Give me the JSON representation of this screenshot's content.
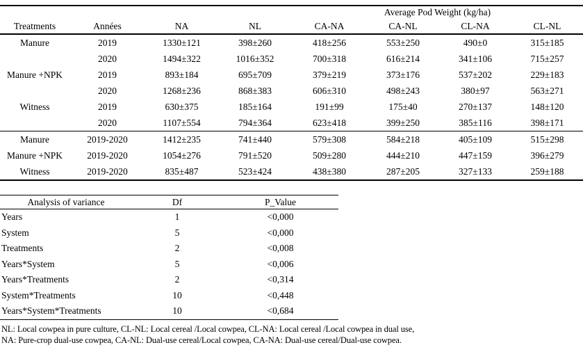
{
  "colors": {
    "text": "#000000",
    "background": "#ffffff",
    "rule": "#000000"
  },
  "main_table": {
    "spanning_header": "Average Pod Weight (kg/ha)",
    "columns": [
      "Treatments",
      "Années",
      "NA",
      "NL",
      "CA-NA",
      "CA-NL",
      "CL-NA",
      "CL-NL"
    ],
    "yearly_rows": [
      {
        "treatment": "Manure",
        "year": "2019",
        "values": [
          "1330±121",
          "398±260",
          "418±256",
          "553±250",
          "490±0",
          "315±185"
        ]
      },
      {
        "treatment": "",
        "year": "2020",
        "values": [
          "1494±322",
          "1016±352",
          "700±318",
          "616±214",
          "341±106",
          "715±257"
        ]
      },
      {
        "treatment": "Manure +NPK",
        "year": "2019",
        "values": [
          "893±184",
          "695±709",
          "379±219",
          "373±176",
          "537±202",
          "229±183"
        ]
      },
      {
        "treatment": "",
        "year": "2020",
        "values": [
          "1268±236",
          "868±383",
          "606±310",
          "498±243",
          "380±97",
          "563±271"
        ]
      },
      {
        "treatment": "Witness",
        "year": "2019",
        "values": [
          "630±375",
          "185±164",
          "191±99",
          "175±40",
          "270±137",
          "148±120"
        ]
      },
      {
        "treatment": "",
        "year": "2020",
        "values": [
          "1107±554",
          "794±364",
          "623±418",
          "399±250",
          "385±116",
          "398±171"
        ]
      }
    ],
    "summary_rows": [
      {
        "treatment": "Manure",
        "year": "2019-2020",
        "values": [
          "1412±235",
          "741±440",
          "579±308",
          "584±218",
          "405±109",
          "515±298"
        ]
      },
      {
        "treatment": "Manure +NPK",
        "year": "2019-2020",
        "values": [
          "1054±276",
          "791±520",
          "509±280",
          "444±210",
          "447±159",
          "396±279"
        ]
      },
      {
        "treatment": "Witness",
        "year": "2019-2020",
        "values": [
          "835±487",
          "523±424",
          "438±380",
          "287±205",
          "327±133",
          "259±188"
        ]
      }
    ]
  },
  "anova_table": {
    "columns": [
      "Analysis of variance",
      "Df",
      "P_Value"
    ],
    "rows": [
      {
        "source": "Years",
        "df": "1",
        "p_value": "<0,000"
      },
      {
        "source": "System",
        "df": "5",
        "p_value": "<0,000"
      },
      {
        "source": "Treatments",
        "df": "2",
        "p_value": "<0,008"
      },
      {
        "source": "Years*System",
        "df": "5",
        "p_value": "<0,006"
      },
      {
        "source": "Years*Treatments",
        "df": "2",
        "p_value": "<0,314"
      },
      {
        "source": "System*Treatments",
        "df": "10",
        "p_value": "<0,448"
      },
      {
        "source": "Years*System*Treatments",
        "df": "10",
        "p_value": "<0,684"
      }
    ]
  },
  "footnotes": [
    "NL: Local cowpea in pure culture, CL-NL: Local cereal /Local cowpea, CL-NA: Local cereal /Local cowpea in dual use,",
    "NA: Pure-crop dual-use cowpea, CA-NL: Dual-use cereal/Local cowpea, CA-NA: Dual-use cereal/Dual-use cowpea."
  ]
}
